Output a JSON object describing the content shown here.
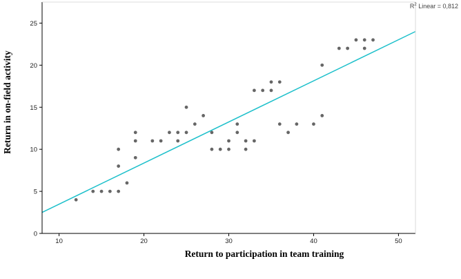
{
  "chart_data": {
    "type": "scatter",
    "title": "",
    "xlabel": "Return to participation in team training",
    "ylabel": "Return in on-field activity",
    "xlim": [
      8,
      52
    ],
    "ylim": [
      0,
      27.5
    ],
    "xticks": [
      10,
      20,
      30,
      40,
      50
    ],
    "yticks": [
      0,
      5,
      10,
      15,
      20,
      25
    ],
    "xtick_labels": [
      "10",
      "20",
      "30",
      "40",
      "50"
    ],
    "ytick_labels": [
      "0",
      "5",
      "10",
      "15",
      "20",
      "25"
    ],
    "grid": false,
    "annotation": {
      "prefix": "R",
      "sup": "2",
      "text": " Linear = 0,812"
    },
    "fit_line": {
      "type": "linear",
      "x": [
        8,
        52
      ],
      "y": [
        2.5,
        24
      ]
    },
    "colors": {
      "points": "#666666",
      "fit_line": "#1ec0cb",
      "axes": "#000000"
    },
    "series": [
      {
        "points": [
          [
            12,
            4
          ],
          [
            14,
            5
          ],
          [
            15,
            5
          ],
          [
            16,
            5
          ],
          [
            17,
            5
          ],
          [
            17,
            8
          ],
          [
            17,
            10
          ],
          [
            18,
            6
          ],
          [
            19,
            9
          ],
          [
            19,
            11
          ],
          [
            19,
            12
          ],
          [
            21,
            11
          ],
          [
            22,
            11
          ],
          [
            23,
            12
          ],
          [
            24,
            11
          ],
          [
            24,
            12
          ],
          [
            25,
            12
          ],
          [
            25,
            15
          ],
          [
            26,
            13
          ],
          [
            27,
            14
          ],
          [
            28,
            10
          ],
          [
            28,
            12
          ],
          [
            29,
            10
          ],
          [
            30,
            10
          ],
          [
            30,
            11
          ],
          [
            31,
            12
          ],
          [
            31,
            13
          ],
          [
            32,
            10
          ],
          [
            32,
            11
          ],
          [
            33,
            11
          ],
          [
            33,
            17
          ],
          [
            34,
            17
          ],
          [
            35,
            17
          ],
          [
            35,
            18
          ],
          [
            36,
            13
          ],
          [
            36,
            18
          ],
          [
            37,
            12
          ],
          [
            38,
            13
          ],
          [
            40,
            13
          ],
          [
            41,
            14
          ],
          [
            41,
            20
          ],
          [
            43,
            22
          ],
          [
            44,
            22
          ],
          [
            45,
            23
          ],
          [
            46,
            22
          ],
          [
            46,
            23
          ],
          [
            47,
            23
          ]
        ]
      }
    ]
  }
}
